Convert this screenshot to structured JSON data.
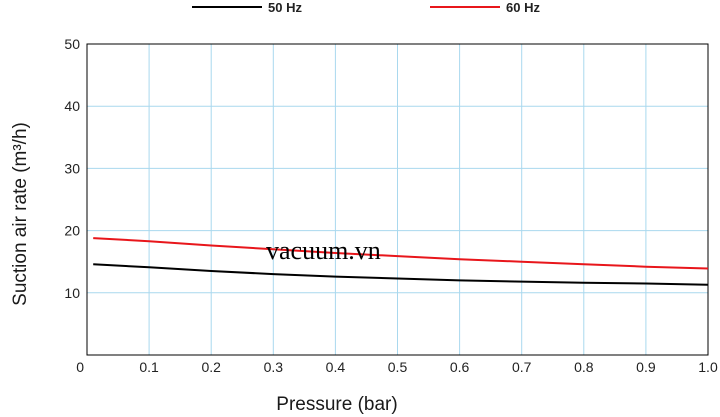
{
  "chart_data": {
    "type": "line",
    "xlabel": "Pressure (bar)",
    "ylabel": "Suction air rate (m³/h)",
    "xlim": [
      0,
      1.0
    ],
    "ylim": [
      0,
      50
    ],
    "x_ticks": [
      "0",
      "0.1",
      "0.2",
      "0.3",
      "0.4",
      "0.5",
      "0.6",
      "0.7",
      "0.8",
      "0.9",
      "1.0"
    ],
    "y_ticks": [
      "0",
      "10",
      "20",
      "30",
      "40",
      "50"
    ],
    "grid": true,
    "legend_position": "top",
    "series": [
      {
        "name": "50 Hz",
        "color": "#000000",
        "x": [
          0.01,
          0.1,
          0.2,
          0.3,
          0.4,
          0.5,
          0.6,
          0.7,
          0.8,
          0.9,
          1.0
        ],
        "y": [
          14.6,
          14.1,
          13.5,
          13.0,
          12.6,
          12.3,
          12.0,
          11.8,
          11.6,
          11.5,
          11.3
        ]
      },
      {
        "name": "60 Hz",
        "color": "#e8161b",
        "x": [
          0.01,
          0.1,
          0.2,
          0.3,
          0.4,
          0.5,
          0.6,
          0.7,
          0.8,
          0.9,
          1.0
        ],
        "y": [
          18.8,
          18.3,
          17.6,
          17.0,
          16.4,
          15.9,
          15.4,
          15.0,
          14.6,
          14.2,
          13.9
        ]
      }
    ]
  },
  "watermark": "vacuum.vn"
}
